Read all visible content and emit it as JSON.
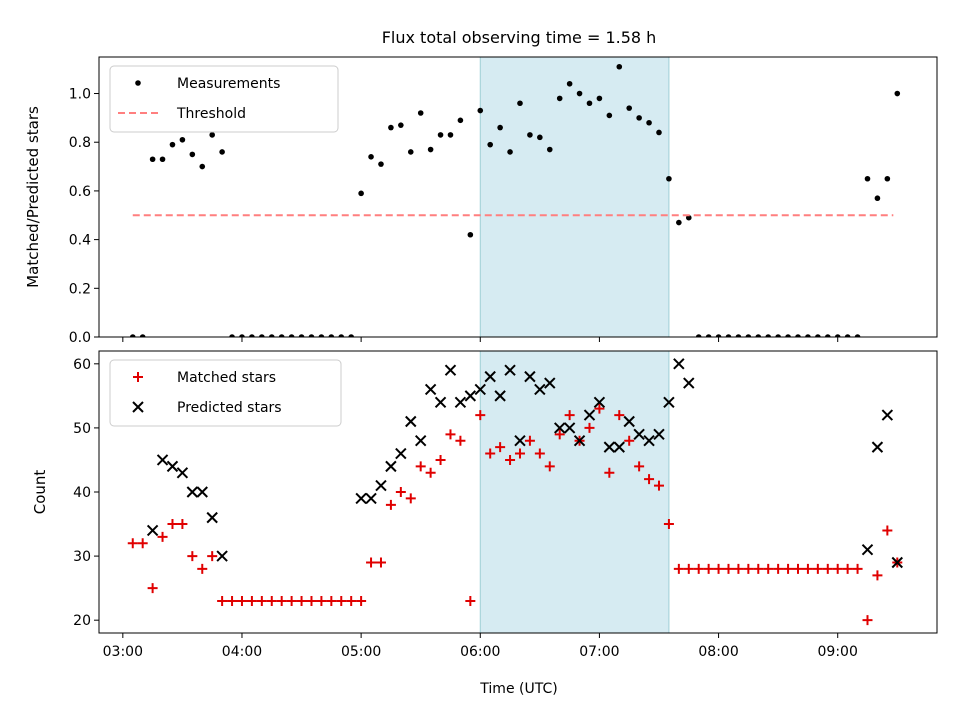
{
  "figure": {
    "title": "Flux total observing time = 1.58 h",
    "xlabel": "Time (UTC)",
    "x_ticks": [
      "03:00",
      "04:00",
      "05:00",
      "06:00",
      "07:00",
      "08:00",
      "09:00"
    ]
  },
  "colors": {
    "measurement": "#000000",
    "threshold": "#ff7f7f",
    "matched": "#e00000",
    "predicted": "#000000",
    "span_fill": "#add8e6"
  },
  "chart_data": [
    {
      "type": "scatter",
      "name": "ratio",
      "title": "Flux total observing time = 1.58 h",
      "xlabel": "",
      "ylabel": "Matched/Predicted stars",
      "x_unit": "hours UTC",
      "xlim": [
        "02:48",
        "09:50"
      ],
      "ylim": [
        0,
        1.15
      ],
      "y_ticks": [
        "0.0",
        "0.2",
        "0.4",
        "0.6",
        "0.8",
        "1.0"
      ],
      "legend": "top-left",
      "shaded_span": [
        "06:00",
        "07:35"
      ],
      "series": [
        {
          "name": "Measurements",
          "marker": "dot",
          "points": [
            [
              "03:05",
              0
            ],
            [
              "03:10",
              0
            ],
            [
              "03:15",
              0.73
            ],
            [
              "03:20",
              0.73
            ],
            [
              "03:25",
              0.79
            ],
            [
              "03:30",
              0.81
            ],
            [
              "03:35",
              0.75
            ],
            [
              "03:40",
              0.7
            ],
            [
              "03:45",
              0.83
            ],
            [
              "03:50",
              0.76
            ],
            [
              "03:55",
              0
            ],
            [
              "04:00",
              0
            ],
            [
              "04:05",
              0
            ],
            [
              "04:10",
              0
            ],
            [
              "04:15",
              0
            ],
            [
              "04:20",
              0
            ],
            [
              "04:25",
              0
            ],
            [
              "04:30",
              0
            ],
            [
              "04:35",
              0
            ],
            [
              "04:40",
              0
            ],
            [
              "04:45",
              0
            ],
            [
              "04:50",
              0
            ],
            [
              "04:55",
              0
            ],
            [
              "05:00",
              0.59
            ],
            [
              "05:05",
              0.74
            ],
            [
              "05:10",
              0.71
            ],
            [
              "05:15",
              0.86
            ],
            [
              "05:20",
              0.87
            ],
            [
              "05:25",
              0.76
            ],
            [
              "05:30",
              0.92
            ],
            [
              "05:35",
              0.77
            ],
            [
              "05:40",
              0.83
            ],
            [
              "05:45",
              0.83
            ],
            [
              "05:50",
              0.89
            ],
            [
              "05:55",
              0.42
            ],
            [
              "06:00",
              0.93
            ],
            [
              "06:05",
              0.79
            ],
            [
              "06:10",
              0.86
            ],
            [
              "06:15",
              0.76
            ],
            [
              "06:20",
              0.96
            ],
            [
              "06:25",
              0.83
            ],
            [
              "06:30",
              0.82
            ],
            [
              "06:35",
              0.77
            ],
            [
              "06:40",
              0.98
            ],
            [
              "06:45",
              1.04
            ],
            [
              "06:50",
              1.0
            ],
            [
              "06:55",
              0.96
            ],
            [
              "07:00",
              0.98
            ],
            [
              "07:05",
              0.91
            ],
            [
              "07:10",
              1.11
            ],
            [
              "07:15",
              0.94
            ],
            [
              "07:20",
              0.9
            ],
            [
              "07:25",
              0.88
            ],
            [
              "07:30",
              0.84
            ],
            [
              "07:35",
              0.65
            ],
            [
              "07:40",
              0.47
            ],
            [
              "07:45",
              0.49
            ],
            [
              "07:50",
              0
            ],
            [
              "07:55",
              0
            ],
            [
              "08:00",
              0
            ],
            [
              "08:05",
              0
            ],
            [
              "08:10",
              0
            ],
            [
              "08:15",
              0
            ],
            [
              "08:20",
              0
            ],
            [
              "08:25",
              0
            ],
            [
              "08:30",
              0
            ],
            [
              "08:35",
              0
            ],
            [
              "08:40",
              0
            ],
            [
              "08:45",
              0
            ],
            [
              "08:50",
              0
            ],
            [
              "08:55",
              0
            ],
            [
              "09:00",
              0
            ],
            [
              "09:05",
              0
            ],
            [
              "09:10",
              0
            ],
            [
              "09:15",
              0.65
            ],
            [
              "09:20",
              0.57
            ],
            [
              "09:25",
              0.65
            ],
            [
              "09:30",
              1.0
            ]
          ]
        },
        {
          "name": "Threshold",
          "marker": "dashed-line",
          "points": [
            [
              "03:05",
              0.5
            ],
            [
              "09:28",
              0.5
            ]
          ]
        }
      ]
    },
    {
      "type": "scatter",
      "name": "counts",
      "title": "",
      "xlabel": "Time (UTC)",
      "ylabel": "Count",
      "x_unit": "hours UTC",
      "xlim": [
        "02:48",
        "09:50"
      ],
      "ylim": [
        18,
        62
      ],
      "y_ticks": [
        "20",
        "30",
        "40",
        "50",
        "60"
      ],
      "legend": "top-left",
      "shaded_span": [
        "06:00",
        "07:35"
      ],
      "series": [
        {
          "name": "Matched stars",
          "marker": "plus",
          "points": [
            [
              "03:05",
              32
            ],
            [
              "03:10",
              32
            ],
            [
              "03:15",
              25
            ],
            [
              "03:20",
              33
            ],
            [
              "03:25",
              35
            ],
            [
              "03:30",
              35
            ],
            [
              "03:35",
              30
            ],
            [
              "03:40",
              28
            ],
            [
              "03:45",
              30
            ],
            [
              "03:50",
              23
            ],
            [
              "03:55",
              23
            ],
            [
              "04:00",
              23
            ],
            [
              "04:05",
              23
            ],
            [
              "04:10",
              23
            ],
            [
              "04:15",
              23
            ],
            [
              "04:20",
              23
            ],
            [
              "04:25",
              23
            ],
            [
              "04:30",
              23
            ],
            [
              "04:35",
              23
            ],
            [
              "04:40",
              23
            ],
            [
              "04:45",
              23
            ],
            [
              "04:50",
              23
            ],
            [
              "04:55",
              23
            ],
            [
              "05:00",
              23
            ],
            [
              "05:05",
              29
            ],
            [
              "05:10",
              29
            ],
            [
              "05:15",
              38
            ],
            [
              "05:20",
              40
            ],
            [
              "05:25",
              39
            ],
            [
              "05:30",
              44
            ],
            [
              "05:35",
              43
            ],
            [
              "05:40",
              45
            ],
            [
              "05:45",
              49
            ],
            [
              "05:50",
              48
            ],
            [
              "05:55",
              23
            ],
            [
              "06:00",
              52
            ],
            [
              "06:05",
              46
            ],
            [
              "06:10",
              47
            ],
            [
              "06:15",
              45
            ],
            [
              "06:20",
              46
            ],
            [
              "06:25",
              48
            ],
            [
              "06:30",
              46
            ],
            [
              "06:35",
              44
            ],
            [
              "06:40",
              49
            ],
            [
              "06:45",
              52
            ],
            [
              "06:50",
              48
            ],
            [
              "06:55",
              50
            ],
            [
              "07:00",
              53
            ],
            [
              "07:05",
              43
            ],
            [
              "07:10",
              52
            ],
            [
              "07:15",
              48
            ],
            [
              "07:20",
              44
            ],
            [
              "07:25",
              42
            ],
            [
              "07:30",
              41
            ],
            [
              "07:35",
              35
            ],
            [
              "07:40",
              28
            ],
            [
              "07:45",
              28
            ],
            [
              "07:50",
              28
            ],
            [
              "07:55",
              28
            ],
            [
              "08:00",
              28
            ],
            [
              "08:05",
              28
            ],
            [
              "08:10",
              28
            ],
            [
              "08:15",
              28
            ],
            [
              "08:20",
              28
            ],
            [
              "08:25",
              28
            ],
            [
              "08:30",
              28
            ],
            [
              "08:35",
              28
            ],
            [
              "08:40",
              28
            ],
            [
              "08:45",
              28
            ],
            [
              "08:50",
              28
            ],
            [
              "08:55",
              28
            ],
            [
              "09:00",
              28
            ],
            [
              "09:05",
              28
            ],
            [
              "09:10",
              28
            ],
            [
              "09:15",
              20
            ],
            [
              "09:20",
              27
            ],
            [
              "09:25",
              34
            ],
            [
              "09:30",
              29
            ]
          ]
        },
        {
          "name": "Predicted stars",
          "marker": "x",
          "points": [
            [
              "03:15",
              34
            ],
            [
              "03:20",
              45
            ],
            [
              "03:25",
              44
            ],
            [
              "03:30",
              43
            ],
            [
              "03:35",
              40
            ],
            [
              "03:40",
              40
            ],
            [
              "03:45",
              36
            ],
            [
              "03:50",
              30
            ],
            [
              "05:00",
              39
            ],
            [
              "05:05",
              39
            ],
            [
              "05:10",
              41
            ],
            [
              "05:15",
              44
            ],
            [
              "05:20",
              46
            ],
            [
              "05:25",
              51
            ],
            [
              "05:30",
              48
            ],
            [
              "05:35",
              56
            ],
            [
              "05:40",
              54
            ],
            [
              "05:45",
              59
            ],
            [
              "05:50",
              54
            ],
            [
              "05:55",
              55
            ],
            [
              "06:00",
              56
            ],
            [
              "06:05",
              58
            ],
            [
              "06:10",
              55
            ],
            [
              "06:15",
              59
            ],
            [
              "06:20",
              48
            ],
            [
              "06:25",
              58
            ],
            [
              "06:30",
              56
            ],
            [
              "06:35",
              57
            ],
            [
              "06:40",
              50
            ],
            [
              "06:45",
              50
            ],
            [
              "06:50",
              48
            ],
            [
              "06:55",
              52
            ],
            [
              "07:00",
              54
            ],
            [
              "07:05",
              47
            ],
            [
              "07:10",
              47
            ],
            [
              "07:15",
              51
            ],
            [
              "07:20",
              49
            ],
            [
              "07:25",
              48
            ],
            [
              "07:30",
              49
            ],
            [
              "07:35",
              54
            ],
            [
              "07:40",
              60
            ],
            [
              "07:45",
              57
            ],
            [
              "09:15",
              31
            ],
            [
              "09:20",
              47
            ],
            [
              "09:25",
              52
            ],
            [
              "09:30",
              29
            ]
          ]
        }
      ]
    }
  ]
}
